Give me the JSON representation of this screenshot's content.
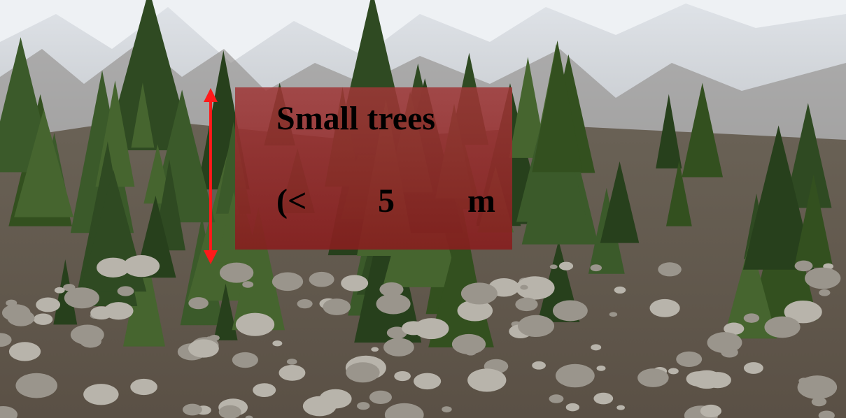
{
  "label": {
    "title": "Small trees",
    "line2": [
      "(<",
      "5",
      "m"
    ]
  }
}
